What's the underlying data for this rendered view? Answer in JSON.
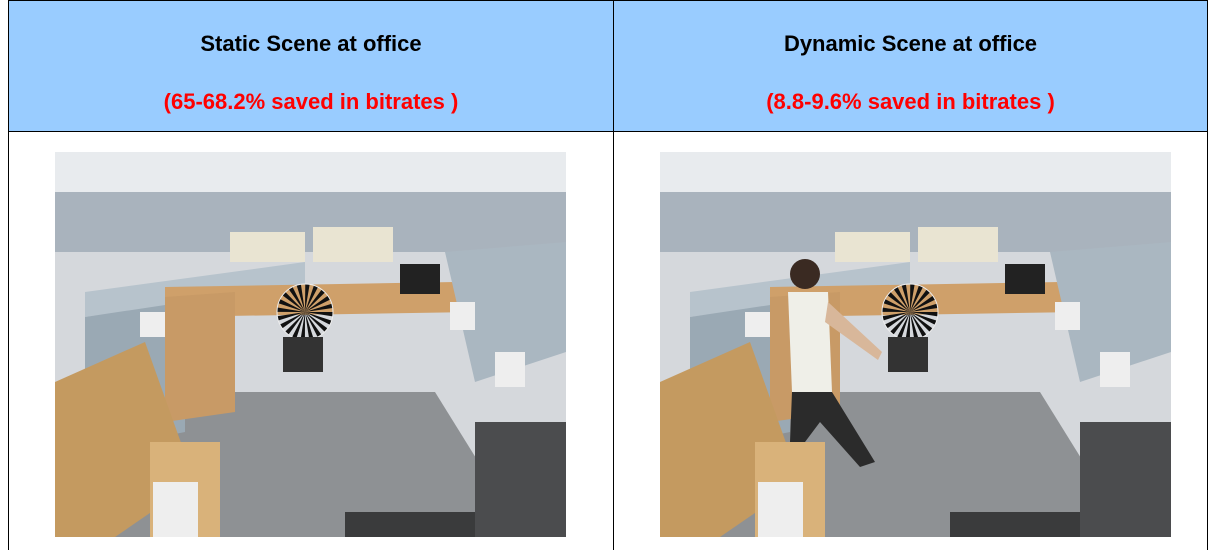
{
  "table": {
    "columns": [
      {
        "title": "Static Scene at office",
        "subtitle": "(65-68.2% saved in bitrates )"
      },
      {
        "title": "Dynamic Scene at office",
        "subtitle": "(8.8-9.6% saved in bitrates )"
      }
    ]
  }
}
